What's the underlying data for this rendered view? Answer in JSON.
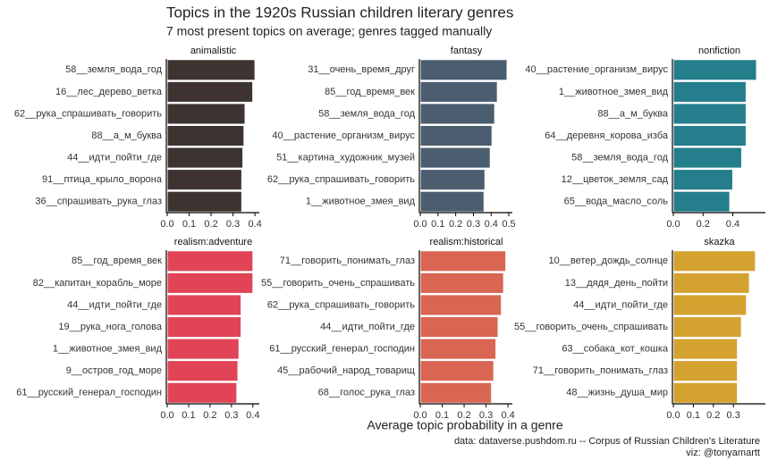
{
  "title": "Topics in the 1920s Russian children literary genres",
  "subtitle": "7 most present topics on average; genres tagged manually",
  "x_label": "Average topic probability in a genre",
  "caption": [
    "data: dataverse.pushdom.ru -- Corpus of Russian Children's Literature",
    "viz: @tonyamartt"
  ],
  "chart_data": [
    {
      "type": "bar",
      "orientation": "horizontal",
      "title": "animalistic",
      "color": "#3d3431",
      "categories": [
        "58__земля_вода_год",
        "16__лес_дерево_ветка",
        "62__рука_спрашивать_говорить",
        "88__а_м_буква",
        "44__идти_пойти_где",
        "91__птица_крыло_ворона",
        "36__спрашивать_рука_глаз"
      ],
      "values": [
        0.4,
        0.39,
        0.355,
        0.35,
        0.345,
        0.34,
        0.34
      ],
      "xlim": [
        0,
        0.42
      ],
      "xticks": [
        {
          "value": 0,
          "label": "0.0"
        },
        0.1,
        0.2,
        0.3,
        0.4
      ]
    },
    {
      "type": "bar",
      "orientation": "horizontal",
      "title": "fantasy",
      "color": "#4b5e6f",
      "categories": [
        "31__очень_время_друг",
        "85__год_время_век",
        "58__земля_вода_год",
        "40__растение_организм_вирус",
        "51__картина_художник_музей",
        "62__рука_спрашивать_говорить",
        "1__животное_змея_вид"
      ],
      "values": [
        0.49,
        0.435,
        0.42,
        0.405,
        0.395,
        0.365,
        0.36
      ],
      "xlim": [
        0,
        0.52
      ],
      "xticks": [
        {
          "value": 0,
          "label": "0.0"
        },
        0.1,
        0.2,
        0.3,
        0.4,
        0.5
      ]
    },
    {
      "type": "bar",
      "orientation": "horizontal",
      "title": "nonfiction",
      "color": "#247e8b",
      "categories": [
        "40__растение_организм_вирус",
        "1__животное_змея_вид",
        "88__а_м_буква",
        "64__деревня_корова_изба",
        "58__земля_вода_год",
        "12__цветок_земля_сад",
        "65__вода_масло_соль"
      ],
      "values": [
        0.56,
        0.49,
        0.49,
        0.49,
        0.46,
        0.4,
        0.38
      ],
      "xlim": [
        0,
        0.62
      ],
      "xticks": [
        {
          "value": 0,
          "label": "0.0"
        },
        0.2,
        0.4
      ]
    },
    {
      "type": "bar",
      "orientation": "horizontal",
      "title": "realism:adventure",
      "color": "#e04456",
      "categories": [
        "85__год_время_век",
        "82__капитан_корабль_море",
        "44__идти_пойти_где",
        "19__рука_нога_голова",
        "1__животное_змея_вид",
        "9__остров_год_море",
        "61__русский_генерал_господин"
      ],
      "values": [
        0.4,
        0.4,
        0.345,
        0.345,
        0.335,
        0.33,
        0.325
      ],
      "xlim": [
        0,
        0.43
      ],
      "xticks": [
        {
          "value": 0,
          "label": "0.0"
        },
        0.1,
        0.2,
        0.3,
        0.4
      ]
    },
    {
      "type": "bar",
      "orientation": "horizontal",
      "title": "realism:historical",
      "color": "#d96553",
      "categories": [
        "71__говорить_понимать_глаз",
        "55__говорить_очень_спрашивать",
        "62__рука_спрашивать_говорить",
        "44__идти_пойти_где",
        "61__русский_генерал_господин",
        "45__рабочий_народ_товарищ",
        "68__голос_рука_глаз"
      ],
      "values": [
        0.39,
        0.38,
        0.37,
        0.355,
        0.345,
        0.335,
        0.325
      ],
      "xlim": [
        0,
        0.42
      ],
      "xticks": [
        {
          "value": 0,
          "label": "0.0"
        },
        0.1,
        0.2,
        0.3,
        0.4
      ]
    },
    {
      "type": "bar",
      "orientation": "horizontal",
      "title": "skazka",
      "color": "#d4a22f",
      "categories": [
        "10__ветер_дождь_солнце",
        "13__дядя_день_пойти",
        "44__идти_пойти_где",
        "55__говорить_очень_спрашивать",
        "63__собака_кот_кошка",
        "71__говорить_понимать_глаз",
        "48__жизнь_душа_мир"
      ],
      "values": [
        0.41,
        0.38,
        0.365,
        0.34,
        0.32,
        0.32,
        0.32
      ],
      "xlim": [
        0,
        0.46
      ],
      "xticks": [
        {
          "value": 0,
          "label": "0.0"
        },
        0.1,
        0.2,
        0.3
      ]
    }
  ]
}
